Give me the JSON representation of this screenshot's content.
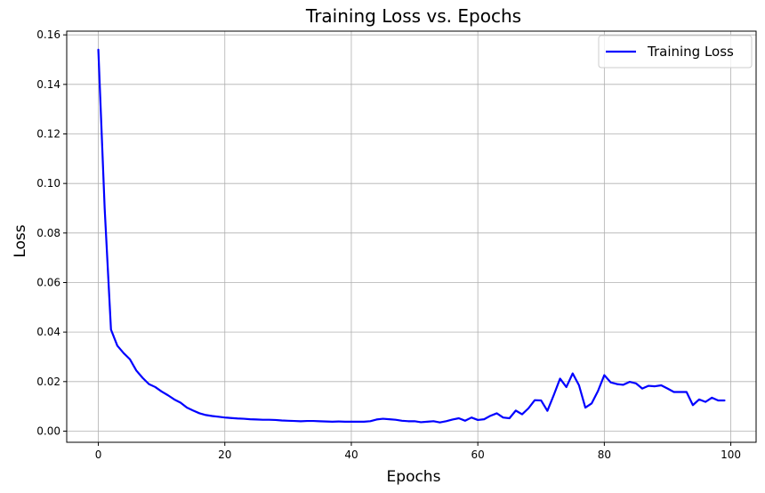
{
  "chart_data": {
    "type": "line",
    "title": "Training Loss vs. Epochs",
    "xlabel": "Epochs",
    "ylabel": "Loss",
    "xlim": [
      -5,
      104
    ],
    "ylim": [
      -0.0045,
      0.1615
    ],
    "xticks": [
      0,
      20,
      40,
      60,
      80,
      100
    ],
    "yticks": [
      0.0,
      0.02,
      0.04,
      0.06,
      0.08,
      0.1,
      0.12,
      0.14,
      0.16
    ],
    "xtick_labels": [
      "0",
      "20",
      "40",
      "60",
      "80",
      "100"
    ],
    "ytick_labels": [
      "0.00",
      "0.02",
      "0.04",
      "0.06",
      "0.08",
      "0.10",
      "0.12",
      "0.14",
      "0.16"
    ],
    "grid": true,
    "legend_position": "top-right",
    "series": [
      {
        "name": "Training Loss",
        "color": "#0000ff",
        "x": [
          0,
          1,
          2,
          3,
          4,
          5,
          6,
          7,
          8,
          9,
          10,
          11,
          12,
          13,
          14,
          15,
          16,
          17,
          18,
          19,
          20,
          21,
          22,
          23,
          24,
          25,
          26,
          27,
          28,
          29,
          30,
          31,
          32,
          33,
          34,
          35,
          36,
          37,
          38,
          39,
          40,
          41,
          42,
          43,
          44,
          45,
          46,
          47,
          48,
          49,
          50,
          51,
          52,
          53,
          54,
          55,
          56,
          57,
          58,
          59,
          60,
          61,
          62,
          63,
          64,
          65,
          66,
          67,
          68,
          69,
          70,
          71,
          72,
          73,
          74,
          75,
          76,
          77,
          78,
          79,
          80,
          81,
          82,
          83,
          84,
          85,
          86,
          87,
          88,
          89,
          90,
          91,
          92,
          93,
          94,
          95,
          96,
          97,
          98,
          99
        ],
        "values": [
          0.154,
          0.09,
          0.041,
          0.0345,
          0.0315,
          0.029,
          0.0245,
          0.0215,
          0.019,
          0.0178,
          0.016,
          0.0145,
          0.0128,
          0.0115,
          0.0095,
          0.0083,
          0.0072,
          0.0065,
          0.0061,
          0.0058,
          0.0055,
          0.0053,
          0.0051,
          0.005,
          0.0048,
          0.0047,
          0.0046,
          0.0046,
          0.0045,
          0.0043,
          0.0042,
          0.0041,
          0.004,
          0.0041,
          0.0041,
          0.004,
          0.0039,
          0.0038,
          0.0039,
          0.0038,
          0.0038,
          0.0038,
          0.0038,
          0.004,
          0.0047,
          0.005,
          0.0048,
          0.0046,
          0.0042,
          0.004,
          0.004,
          0.0036,
          0.0038,
          0.004,
          0.0035,
          0.004,
          0.0047,
          0.0052,
          0.0042,
          0.0055,
          0.0045,
          0.0048,
          0.0062,
          0.0072,
          0.0055,
          0.0052,
          0.0083,
          0.0068,
          0.0092,
          0.0125,
          0.0124,
          0.0082,
          0.0145,
          0.0212,
          0.0178,
          0.0233,
          0.0185,
          0.0095,
          0.0112,
          0.0162,
          0.0226,
          0.0197,
          0.019,
          0.0187,
          0.0199,
          0.0193,
          0.0172,
          0.0183,
          0.0181,
          0.0185,
          0.0172,
          0.0158,
          0.0158,
          0.0158,
          0.0105,
          0.0128,
          0.0118,
          0.0135,
          0.0124,
          0.0124
        ]
      }
    ]
  }
}
